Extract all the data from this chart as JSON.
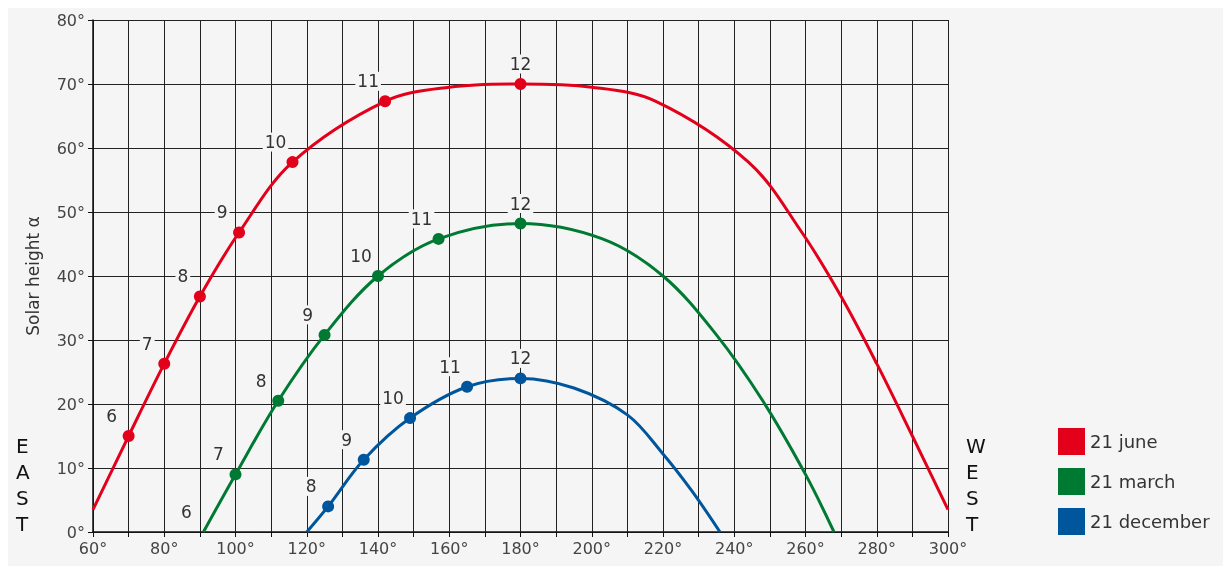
{
  "chart_data": {
    "type": "line",
    "ylabel": "Solar height α",
    "xlim": [
      60,
      300
    ],
    "ylim": [
      0,
      80
    ],
    "xticks": [
      {
        "value": 60,
        "label": "60°"
      },
      {
        "value": 70,
        "label": null
      },
      {
        "value": 80,
        "label": "80°"
      },
      {
        "value": 90,
        "label": null
      },
      {
        "value": 100,
        "label": "100°"
      },
      {
        "value": 110,
        "label": null
      },
      {
        "value": 120,
        "label": "120°"
      },
      {
        "value": 130,
        "label": null
      },
      {
        "value": 140,
        "label": "140°"
      },
      {
        "value": 150,
        "label": null
      },
      {
        "value": 160,
        "label": "160°"
      },
      {
        "value": 170,
        "label": null
      },
      {
        "value": 180,
        "label": "180°"
      },
      {
        "value": 190,
        "label": null
      },
      {
        "value": 200,
        "label": "200°"
      },
      {
        "value": 210,
        "label": null
      },
      {
        "value": 220,
        "label": "220°"
      },
      {
        "value": 230,
        "label": null
      },
      {
        "value": 240,
        "label": "240°"
      },
      {
        "value": 250,
        "label": null
      },
      {
        "value": 260,
        "label": "260°"
      },
      {
        "value": 270,
        "label": null
      },
      {
        "value": 280,
        "label": "280°"
      },
      {
        "value": 290,
        "label": null
      },
      {
        "value": 300,
        "label": "300°"
      }
    ],
    "yticks": [
      {
        "value": 0,
        "label": "0°"
      },
      {
        "value": 10,
        "label": "10°"
      },
      {
        "value": 20,
        "label": "20°"
      },
      {
        "value": 30,
        "label": "30°"
      },
      {
        "value": 40,
        "label": "40°"
      },
      {
        "value": 50,
        "label": "50°"
      },
      {
        "value": 60,
        "label": "60°"
      },
      {
        "value": 70,
        "label": "70°"
      },
      {
        "value": 80,
        "label": "80°"
      }
    ],
    "grid": true,
    "legend": "bottom right",
    "marker": "none",
    "line_style": "solid",
    "series": [
      {
        "name": "21 june",
        "color": "#e2001a",
        "x": [
          60,
          70,
          80,
          90,
          101,
          116,
          142,
          160,
          180,
          200,
          218,
          244,
          259,
          270,
          280,
          290,
          300
        ],
        "values": [
          3.5,
          15,
          26.3,
          36.8,
          46.8,
          57.8,
          67.3,
          69.5,
          70,
          69.5,
          67.3,
          57.8,
          46.8,
          36.8,
          26.3,
          15,
          3.5
        ]
      },
      {
        "name": "21 march",
        "color": "#007a33",
        "x": [
          91,
          100,
          112,
          125,
          140,
          157,
          180,
          203,
          220,
          235,
          248,
          260,
          268
        ],
        "values": [
          0,
          9,
          20.5,
          30.8,
          40,
          45.8,
          48.2,
          45.8,
          40,
          30.8,
          20.5,
          9,
          0
        ]
      },
      {
        "name": "21 december",
        "color": "#00569c",
        "x": [
          120,
          126,
          136,
          149,
          165,
          180,
          195,
          210,
          220,
          228,
          236
        ],
        "values": [
          0,
          4,
          11.3,
          17.8,
          22.7,
          24,
          22.5,
          18.3,
          12.2,
          6.5,
          0
        ]
      },
      {
        "type": "scatter",
        "marker": "circle",
        "color": "#e2001a",
        "x": [
          70,
          80,
          90,
          101,
          116,
          142,
          180
        ],
        "values": [
          15,
          26.3,
          36.8,
          46.8,
          57.8,
          67.3,
          70
        ]
      },
      {
        "type": "scatter",
        "marker": "circle",
        "color": "#007a33",
        "x": [
          100,
          112,
          125,
          140,
          157,
          180
        ],
        "values": [
          9,
          20.5,
          30.8,
          40,
          45.8,
          48.2
        ]
      },
      {
        "type": "scatter",
        "marker": "circle",
        "color": "#00569c",
        "x": [
          126,
          136,
          149,
          165,
          180
        ],
        "values": [
          4,
          11.3,
          17.8,
          22.7,
          24
        ]
      }
    ],
    "annotations": [
      "EAST",
      "WEST",
      {
        "text": "6",
        "x": 70,
        "y": 15
      },
      {
        "text": "7",
        "x": 80,
        "y": 26.3
      },
      {
        "text": "8",
        "x": 90,
        "y": 36.8
      },
      {
        "text": "9",
        "x": 101,
        "y": 46.8
      },
      {
        "text": "10",
        "x": 116,
        "y": 57.8
      },
      {
        "text": "11",
        "x": 142,
        "y": 67.3
      },
      {
        "text": "12",
        "x": 180,
        "y": 70
      },
      {
        "text": "6",
        "x": 91,
        "y": 0
      },
      {
        "text": "7",
        "x": 100,
        "y": 9
      },
      {
        "text": "8",
        "x": 112,
        "y": 20.5
      },
      {
        "text": "9",
        "x": 125,
        "y": 30.8
      },
      {
        "text": "10",
        "x": 140,
        "y": 40
      },
      {
        "text": "11",
        "x": 157,
        "y": 45.8
      },
      {
        "text": "12",
        "x": 180,
        "y": 48.2
      },
      {
        "text": "8",
        "x": 126,
        "y": 4
      },
      {
        "text": "9",
        "x": 136,
        "y": 11.3
      },
      {
        "text": "10",
        "x": 149,
        "y": 17.8
      },
      {
        "text": "11",
        "x": 165,
        "y": 22.7
      },
      {
        "text": "12",
        "x": 180,
        "y": 24
      }
    ]
  }
}
